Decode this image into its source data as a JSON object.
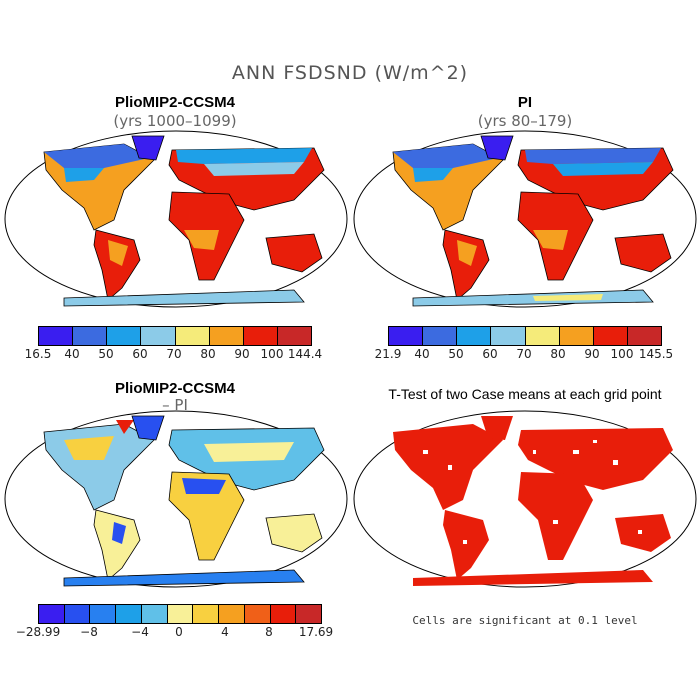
{
  "figure": {
    "title": "ANN FSDSND (W/m^2)"
  },
  "panels": [
    {
      "title": "PlioMIP2-CCSM4",
      "subtitle": "(yrs 1000–1099)",
      "colorbar": {
        "labels": [
          "16.5",
          "40",
          "50",
          "60",
          "70",
          "80",
          "90",
          "100",
          "144.4"
        ],
        "colors": [
          "#3a1ef0",
          "#3c6be0",
          "#1ea0e8",
          "#8ccbe8",
          "#f5eb7a",
          "#f5a020",
          "#e81e0a",
          "#c82828"
        ]
      }
    },
    {
      "title": "PI",
      "subtitle": "(yrs 80–179)",
      "colorbar": {
        "labels": [
          "21.9",
          "40",
          "50",
          "60",
          "70",
          "80",
          "90",
          "100",
          "145.5"
        ],
        "colors": [
          "#3a1ef0",
          "#3c6be0",
          "#1ea0e8",
          "#8ccbe8",
          "#f5eb7a",
          "#f5a020",
          "#e81e0a",
          "#c82828"
        ]
      }
    },
    {
      "title": "PlioMIP2-CCSM4",
      "subtitle": "– PI",
      "colorbar": {
        "labels": [
          "−28.99",
          "−8",
          "−4",
          "0",
          "4",
          "8",
          "17.69"
        ],
        "colors": [
          "#3a1ef0",
          "#2850f0",
          "#2880f0",
          "#1ea0e8",
          "#60c0e8",
          "#f8f098",
          "#f8d040",
          "#f5a020",
          "#f06018",
          "#e81e0a",
          "#c82828"
        ]
      }
    },
    {
      "title": "T-Test of two Case means at each grid point",
      "note": "Cells are significant at 0.1 level",
      "sig_color": "#e81e0a"
    }
  ]
}
